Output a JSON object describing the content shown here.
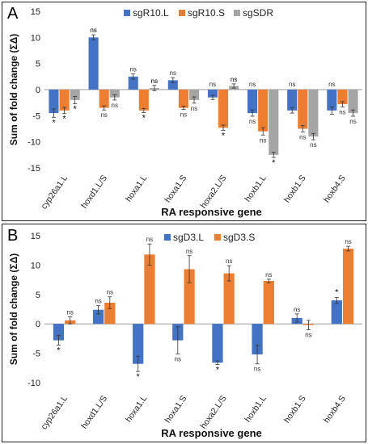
{
  "chart_data": [
    {
      "panel_label": "A",
      "type": "bar",
      "categories": [
        "cyp26a1.L",
        "hoxd1.L/S",
        "hoxa1.L",
        "hoxa1.S",
        "hoxa2.L/S",
        "hoxb1.L",
        "hoxb1.S",
        "hoxb4.S"
      ],
      "series": [
        {
          "name": "sgR10.L",
          "color": "#4472C4",
          "values": [
            -4.5,
            10.0,
            2.5,
            1.8,
            -1.5,
            -4.5,
            -4.0,
            -4.0
          ],
          "errors": [
            0.8,
            0.5,
            0.5,
            0.5,
            0.4,
            0.6,
            0.5,
            0.7
          ],
          "labels": [
            "*",
            "ns",
            "",
            "",
            "",
            "ns",
            "",
            ""
          ]
        },
        {
          "name": "sgR10.S",
          "color": "#ED7D31",
          "values": [
            -4.0,
            -3.5,
            -4.0,
            -3.5,
            -7.3,
            -8.0,
            -7.5,
            -2.8
          ],
          "errors": [
            0.6,
            0.4,
            0.4,
            0.3,
            0.5,
            0.7,
            0.6,
            0.5
          ],
          "labels": [
            "*",
            "ns",
            "*",
            "ns",
            "*",
            "ns",
            "ns",
            "ns"
          ]
        },
        {
          "name": "sgSDR",
          "color": "#A5A5A5",
          "values": [
            -2.0,
            -1.5,
            0.3,
            -2.0,
            0.7,
            -12.5,
            -9.0,
            -4.5
          ],
          "errors": [
            0.7,
            0.5,
            0.5,
            0.6,
            0.4,
            0.5,
            0.6,
            0.6
          ],
          "labels": [
            "*",
            "ns",
            "ns",
            "ns",
            "ns",
            "*",
            "ns",
            "ns"
          ]
        }
      ],
      "top_labels": [
        [
          "",
          "ns",
          "ns",
          "ns",
          "ns",
          "ns",
          "ns",
          "ns"
        ],
        [
          "",
          "",
          "",
          "",
          "",
          "",
          "",
          ""
        ],
        [
          "",
          "",
          "ns",
          "",
          "ns",
          "",
          "",
          ""
        ]
      ],
      "ylabel": "Sum of fold change (ΣΔ)",
      "xlabel": "RA responsive gene",
      "ylim": [
        -15,
        15
      ],
      "yticks": [
        15,
        10,
        5,
        0,
        -5,
        -10,
        -15
      ],
      "legend": "top-center"
    },
    {
      "panel_label": "B",
      "type": "bar",
      "categories": [
        "cyp26a1.L",
        "hoxd1.L/S",
        "hoxa1.L",
        "hoxa1.S",
        "hoxa2.L/S",
        "hoxb1.L",
        "hoxb1.S",
        "hoxb4.S"
      ],
      "series": [
        {
          "name": "sgD3.L",
          "color": "#4472C4",
          "values": [
            -2.8,
            2.4,
            -6.8,
            -2.8,
            -6.6,
            -5.2,
            1.0,
            4.0
          ],
          "errors": [
            0.8,
            0.7,
            1.3,
            2.3,
            0.3,
            1.6,
            0.7,
            0.5
          ],
          "labels": [
            "*",
            "ns",
            "*",
            "ns",
            "*",
            "ns",
            "ns",
            "*"
          ]
        },
        {
          "name": "sgD3.S",
          "color": "#ED7D31",
          "values": [
            0.6,
            3.6,
            11.8,
            9.3,
            8.6,
            7.3,
            -0.2,
            12.8
          ],
          "errors": [
            0.6,
            1.0,
            1.8,
            2.3,
            1.3,
            0.3,
            0.8,
            0.4
          ],
          "labels": [
            "ns",
            "ns",
            "ns",
            "ns",
            "ns",
            "ns",
            "ns",
            "ns"
          ]
        }
      ],
      "ylabel": "Sum of fold change (ΣΔ)",
      "xlabel": "RA responsive gene",
      "ylim": [
        -10,
        15
      ],
      "yticks": [
        15,
        10,
        5,
        0,
        -5,
        -10
      ],
      "legend": "top-center"
    }
  ]
}
